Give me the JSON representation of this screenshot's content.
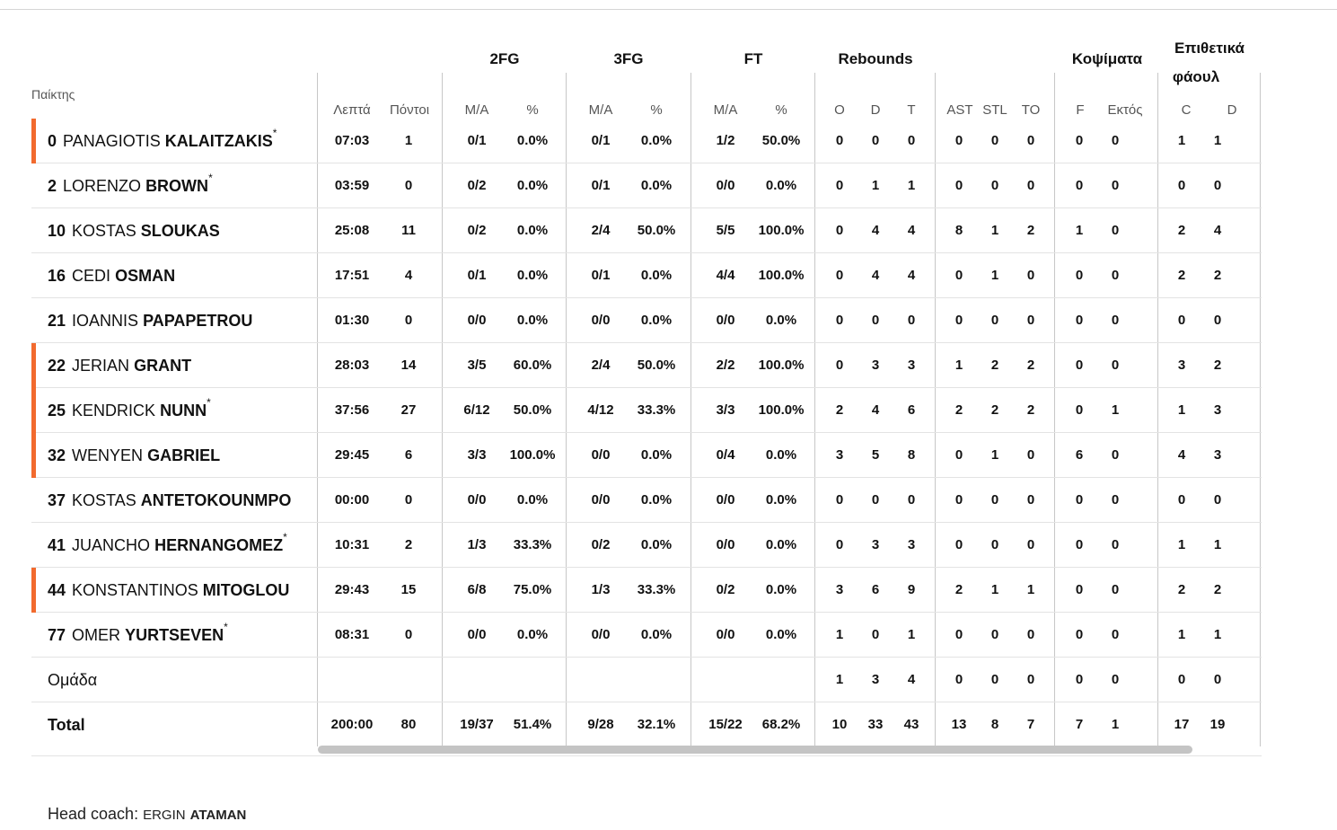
{
  "header": {
    "players": "Παίκτης",
    "groups": {
      "fg2": "2FG",
      "fg3": "3FG",
      "ft": "FT",
      "rebounds": "Rebounds",
      "blocks": "Κοψίματα",
      "fouls_line1": "Επιθετικά",
      "fouls_line2": "φάουλ"
    },
    "sub": {
      "min": "Λεπτά",
      "pts": "Πόντοι",
      "fg2_ma": "M/A",
      "fg2_pct": "%",
      "fg3_ma": "M/A",
      "fg3_pct": "%",
      "ft_ma": "M/A",
      "ft_pct": "%",
      "o": "O",
      "d": "D",
      "t": "T",
      "ast": "AST",
      "stl": "STL",
      "to": "TO",
      "f": "F",
      "out": "Εκτός",
      "c": "C",
      "dd": "D"
    }
  },
  "players": [
    {
      "num": "0",
      "first": "PANAGIOTIS",
      "last": "KALAITZAKIS",
      "star": "*",
      "starter": true,
      "stats": [
        "07:03",
        "1",
        "0/1",
        "0.0%",
        "0/1",
        "0.0%",
        "1/2",
        "50.0%",
        "0",
        "0",
        "0",
        "0",
        "0",
        "0",
        "0",
        "0",
        "1",
        "1"
      ]
    },
    {
      "num": "2",
      "first": "LORENZO",
      "last": "BROWN",
      "star": "*",
      "starter": false,
      "stats": [
        "03:59",
        "0",
        "0/2",
        "0.0%",
        "0/1",
        "0.0%",
        "0/0",
        "0.0%",
        "0",
        "1",
        "1",
        "0",
        "0",
        "0",
        "0",
        "0",
        "0",
        "0"
      ]
    },
    {
      "num": "10",
      "first": "KOSTAS",
      "last": "SLOUKAS",
      "star": "",
      "starter": false,
      "stats": [
        "25:08",
        "11",
        "0/2",
        "0.0%",
        "2/4",
        "50.0%",
        "5/5",
        "100.0%",
        "0",
        "4",
        "4",
        "8",
        "1",
        "2",
        "1",
        "0",
        "2",
        "4"
      ]
    },
    {
      "num": "16",
      "first": "CEDI",
      "last": "OSMAN",
      "star": "",
      "starter": false,
      "stats": [
        "17:51",
        "4",
        "0/1",
        "0.0%",
        "0/1",
        "0.0%",
        "4/4",
        "100.0%",
        "0",
        "4",
        "4",
        "0",
        "1",
        "0",
        "0",
        "0",
        "2",
        "2"
      ]
    },
    {
      "num": "21",
      "first": "IOANNIS",
      "last": "PAPAPETROU",
      "star": "",
      "starter": false,
      "stats": [
        "01:30",
        "0",
        "0/0",
        "0.0%",
        "0/0",
        "0.0%",
        "0/0",
        "0.0%",
        "0",
        "0",
        "0",
        "0",
        "0",
        "0",
        "0",
        "0",
        "0",
        "0"
      ]
    },
    {
      "num": "22",
      "first": "JERIAN",
      "last": "GRANT",
      "star": "",
      "starter": true,
      "stats": [
        "28:03",
        "14",
        "3/5",
        "60.0%",
        "2/4",
        "50.0%",
        "2/2",
        "100.0%",
        "0",
        "3",
        "3",
        "1",
        "2",
        "2",
        "0",
        "0",
        "3",
        "2"
      ]
    },
    {
      "num": "25",
      "first": "KENDRICK",
      "last": "NUNN",
      "star": "*",
      "starter": true,
      "stats": [
        "37:56",
        "27",
        "6/12",
        "50.0%",
        "4/12",
        "33.3%",
        "3/3",
        "100.0%",
        "2",
        "4",
        "6",
        "2",
        "2",
        "2",
        "0",
        "1",
        "1",
        "3"
      ]
    },
    {
      "num": "32",
      "first": "WENYEN",
      "last": "GABRIEL",
      "star": "",
      "starter": true,
      "stats": [
        "29:45",
        "6",
        "3/3",
        "100.0%",
        "0/0",
        "0.0%",
        "0/4",
        "0.0%",
        "3",
        "5",
        "8",
        "0",
        "1",
        "0",
        "6",
        "0",
        "4",
        "3"
      ]
    },
    {
      "num": "37",
      "first": "KOSTAS",
      "last": "ANTETOKOUNMPO",
      "star": "",
      "starter": false,
      "stats": [
        "00:00",
        "0",
        "0/0",
        "0.0%",
        "0/0",
        "0.0%",
        "0/0",
        "0.0%",
        "0",
        "0",
        "0",
        "0",
        "0",
        "0",
        "0",
        "0",
        "0",
        "0"
      ]
    },
    {
      "num": "41",
      "first": "JUANCHO",
      "last": "HERNANGOMEZ",
      "star": "*",
      "starter": false,
      "stats": [
        "10:31",
        "2",
        "1/3",
        "33.3%",
        "0/2",
        "0.0%",
        "0/0",
        "0.0%",
        "0",
        "3",
        "3",
        "0",
        "0",
        "0",
        "0",
        "0",
        "1",
        "1"
      ]
    },
    {
      "num": "44",
      "first": "KONSTANTINOS",
      "last": "MITOGLOU",
      "star": "",
      "starter": true,
      "stats": [
        "29:43",
        "15",
        "6/8",
        "75.0%",
        "1/3",
        "33.3%",
        "0/2",
        "0.0%",
        "3",
        "6",
        "9",
        "2",
        "1",
        "1",
        "0",
        "0",
        "2",
        "2"
      ]
    },
    {
      "num": "77",
      "first": "OMER",
      "last": "YURTSEVEN",
      "star": "*",
      "starter": false,
      "stats": [
        "08:31",
        "0",
        "0/0",
        "0.0%",
        "0/0",
        "0.0%",
        "0/0",
        "0.0%",
        "1",
        "0",
        "1",
        "0",
        "0",
        "0",
        "0",
        "0",
        "1",
        "1"
      ]
    }
  ],
  "team": {
    "label": "Ομάδα",
    "stats": [
      "",
      "",
      "",
      "",
      "",
      "",
      "",
      "",
      "1",
      "3",
      "4",
      "0",
      "0",
      "0",
      "0",
      "0",
      "0",
      "0"
    ]
  },
  "total": {
    "label": "Total",
    "stats": [
      "200:00",
      "80",
      "19/37",
      "51.4%",
      "9/28",
      "32.1%",
      "15/22",
      "68.2%",
      "10",
      "33",
      "43",
      "13",
      "8",
      "7",
      "7",
      "1",
      "17",
      "19"
    ]
  },
  "coach": {
    "label": "Head coach:",
    "first": "ERGIN",
    "last": "ATAMAN"
  },
  "colors": {
    "starter_bar": "#f26a2e",
    "divider": "#c7c7c7",
    "scrollbar": "#c4c4c4"
  }
}
